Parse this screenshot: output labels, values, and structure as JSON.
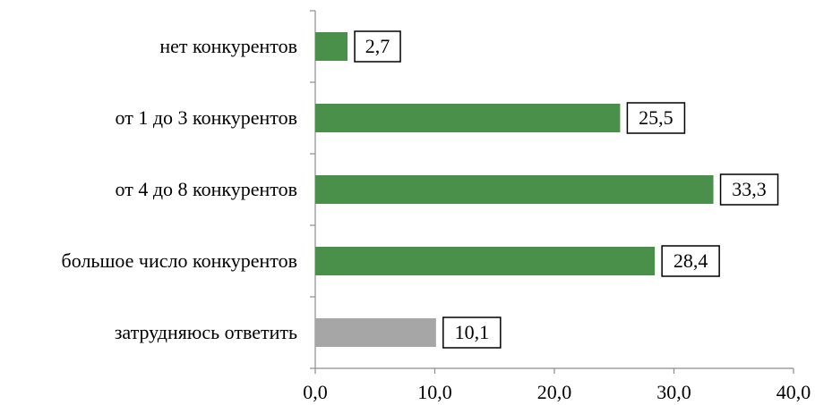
{
  "chart_data": {
    "type": "bar",
    "orientation": "horizontal",
    "categories": [
      "нет конкурентов",
      "от 1 до 3 конкурентов",
      "от 4 до 8 конкурентов",
      "большое число конкурентов",
      "затрудняюсь ответить"
    ],
    "values": [
      2.7,
      25.5,
      33.3,
      28.4,
      10.1
    ],
    "data_labels": [
      "2,7",
      "25,5",
      "33,3",
      "28,4",
      "10,1"
    ],
    "bar_colors": [
      "#4a8f4a",
      "#4a8f4a",
      "#4a8f4a",
      "#4a8f4a",
      "#a6a6a6"
    ],
    "xlim": [
      0,
      40
    ],
    "x_ticks": [
      0,
      10,
      20,
      30,
      40
    ],
    "x_tick_labels": [
      "0,0",
      "10,0",
      "20,0",
      "30,0",
      "40,0"
    ],
    "title": "",
    "xlabel": "",
    "ylabel": "",
    "grid": false,
    "legend": "none"
  }
}
